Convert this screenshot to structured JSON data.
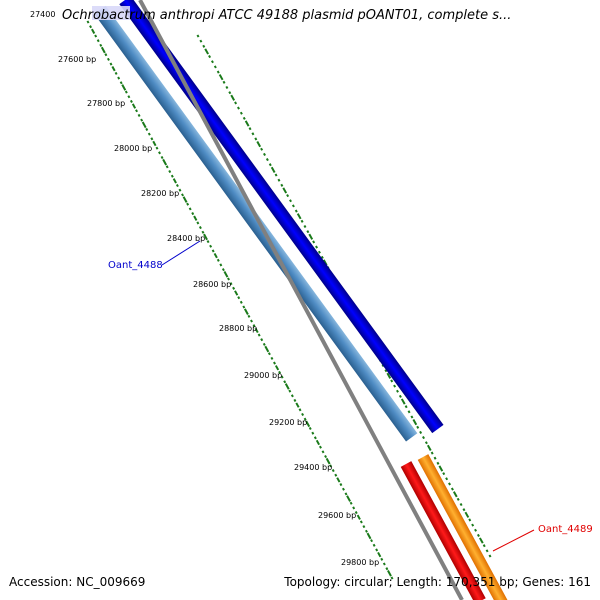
{
  "title": "Ochrobactrum anthropi ATCC 49188 plasmid pOANT01, complete s...",
  "footer": {
    "accession": "Accession: NC_009669",
    "info": "Topology: circular; Length: 170,351 bp; Genes: 161"
  },
  "ticks": [
    "27400",
    "27600 bp",
    "27800 bp",
    "28000 bp",
    "28200 bp",
    "28400 bp",
    "28600 bp",
    "28800 bp",
    "29000 bp",
    "29200 bp",
    "29400 bp",
    "29600 bp",
    "29800 bp"
  ],
  "genes": [
    {
      "name": "Oant_4488",
      "color": "#0000cc"
    },
    {
      "name": "Oant_4489",
      "color": "#e00000"
    }
  ],
  "colors": {
    "forward_gene": "#0000ff",
    "reverse_gene": "#3d7fb8",
    "red_gene": "#ff0000",
    "orange_gene": "#ff9900",
    "backbone": "#808080",
    "gc_ticks": "#1a7a1a"
  }
}
